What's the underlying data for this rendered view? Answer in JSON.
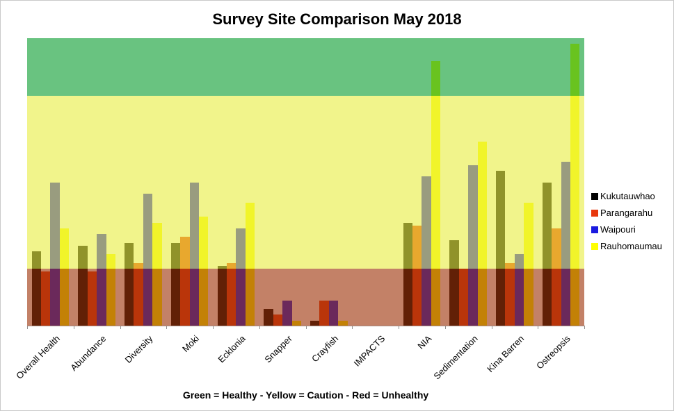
{
  "chart_data": {
    "type": "bar",
    "title": "Survey Site Comparison May 2018",
    "caption": "Green = Healthy - Yellow = Caution - Red = Unhealthy",
    "categories": [
      "Overall Health",
      "Abundance",
      "Diversity",
      "Moki",
      "Ecklonia",
      "Snapper",
      "Crayfish",
      "IMPACTS",
      "NIA",
      "Sedimentation",
      "Kina Barren",
      "Ostreopsis"
    ],
    "series": [
      {
        "name": "Kukutauwhao",
        "color": "#000000",
        "values": [
          2.6,
          2.8,
          2.9,
          2.9,
          2.1,
          0.6,
          0.2,
          0,
          3.6,
          3.0,
          5.4,
          5.0
        ]
      },
      {
        "name": "Parangarahu",
        "color": "#e8370d",
        "values": [
          1.9,
          1.9,
          2.2,
          3.1,
          2.2,
          0.4,
          0.9,
          0,
          3.5,
          2.0,
          2.2,
          3.4
        ]
      },
      {
        "name": "Waipouri",
        "color": "#1a1ae0",
        "values": [
          5.0,
          3.2,
          4.6,
          5.0,
          3.4,
          0.9,
          0.9,
          0,
          5.2,
          5.6,
          2.5,
          5.7
        ]
      },
      {
        "name": "Rauhomaumau",
        "color": "#ffff00",
        "values": [
          3.4,
          2.5,
          3.6,
          3.8,
          4.3,
          0.2,
          0.2,
          0,
          9.2,
          6.4,
          4.3,
          9.8
        ]
      }
    ],
    "ylim": [
      0,
      10
    ],
    "y_axis_labels_visible": false,
    "grid": false,
    "legend_position": "right",
    "bands": [
      {
        "label": "Healthy",
        "from": 8,
        "to": 10,
        "overlay": "rgba(13,158,50,0.62)"
      },
      {
        "label": "Caution",
        "from": 2,
        "to": 8,
        "overlay": "rgba(232,238,68,0.62)"
      },
      {
        "label": "Unhealthy",
        "from": 0,
        "to": 2,
        "overlay": "rgba(158,52,10,0.62)"
      }
    ]
  }
}
